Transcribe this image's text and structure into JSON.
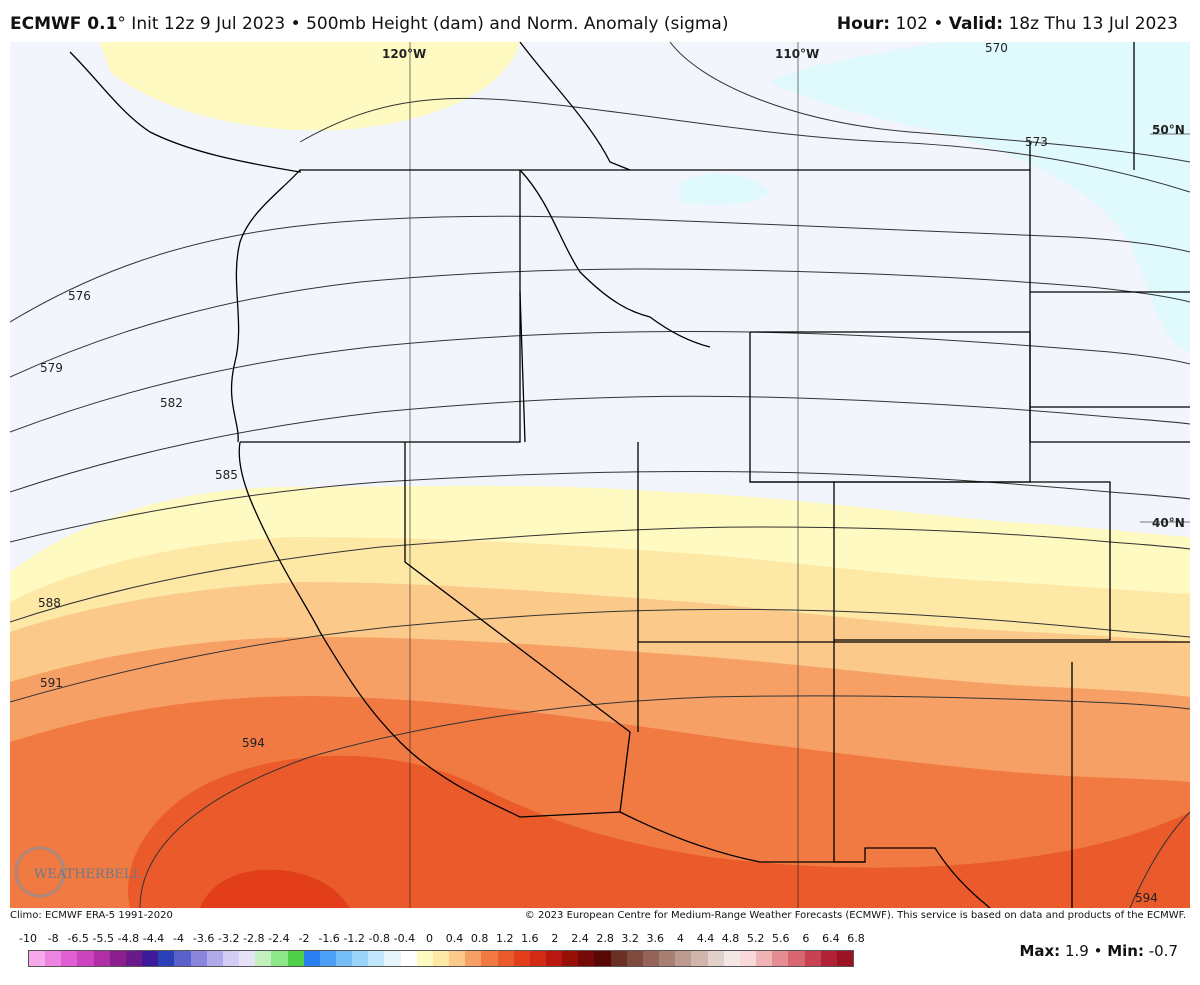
{
  "header": {
    "model": "ECMWF 0.1",
    "degree": "°",
    "init": " Init 12z 9 Jul 2023 • 500mb Height (dam) and Norm. Anomaly (sigma)",
    "hour_label": "Hour:",
    "hour_value": " 102 • ",
    "valid_label": "Valid:",
    "valid_value": " 18z Thu 13 Jul 2023"
  },
  "map": {
    "graticule": {
      "lon_120": "120°W",
      "lon_110": "110°W",
      "lat_50": "50°N",
      "lat_40": "40°N"
    },
    "contours": [
      {
        "label": "570"
      },
      {
        "label": "573"
      },
      {
        "label": "576"
      },
      {
        "label": "579"
      },
      {
        "label": "582"
      },
      {
        "label": "585"
      },
      {
        "label": "588"
      },
      {
        "label": "591"
      },
      {
        "label": "594"
      },
      {
        "label": "594"
      }
    ],
    "anomaly_colors": {
      "neg_0_4": "#f2f6fc",
      "neg_0_8": "#dff9fd",
      "pos_0_4": "#fff9c2",
      "pos_0_8": "#fde8a6",
      "pos_1_2": "#fbc98a",
      "pos_1_6": "#f7a066",
      "pos_2": "#f07a42",
      "pos_2_4": "#ea5a2a",
      "pos_2_8": "#e23e1c"
    },
    "logo": "WEATHERBELL"
  },
  "footer": {
    "climo": "Climo: ECMWF ERA-5 1991-2020",
    "copyright": "© 2023 European Centre for Medium-Range Weather Forecasts (ECMWF). This service is based on data and products of the ECMWF.",
    "scale_labels": [
      "-10",
      "-8",
      "-6.5",
      "-5.5",
      "-4.8",
      "-4.4",
      "-4",
      "-3.6",
      "-3.2",
      "-2.8",
      "-2.4",
      "-2",
      "-1.6",
      "-1.2",
      "-0.8",
      "-0.4",
      "0",
      "0.4",
      "0.8",
      "1.2",
      "1.6",
      "2",
      "2.4",
      "2.8",
      "3.2",
      "3.6",
      "4",
      "4.4",
      "4.8",
      "5.2",
      "5.6",
      "6",
      "6.4",
      "6.8"
    ],
    "scale_colors": [
      "#f6a9ec",
      "#ee84e2",
      "#e060d4",
      "#cc44bf",
      "#b02ea6",
      "#8c1f8e",
      "#6a1a8a",
      "#3d1b9a",
      "#2a3fb8",
      "#5a61cc",
      "#8a86de",
      "#b0a9ea",
      "#d2cdf3",
      "#e6e3f8",
      "#c4f0c0",
      "#8ee68a",
      "#4fd14a",
      "#2a7ff0",
      "#4ba0f5",
      "#74bdf7",
      "#9bd3f9",
      "#c2e6fb",
      "#e7f4fc",
      "#ffffff",
      "#fff9c2",
      "#fde8a6",
      "#fbc98a",
      "#f7a066",
      "#f07a42",
      "#ea5a2a",
      "#e23e1c",
      "#d22a14",
      "#b8180e",
      "#961008",
      "#760a06",
      "#5a0805",
      "#6a3026",
      "#7e4a3e",
      "#946458",
      "#a97f74",
      "#bd9a90",
      "#d0b5ad",
      "#e2d0ca",
      "#f3e8e5",
      "#f8d8d8",
      "#f0b3b6",
      "#e58d93",
      "#d96772",
      "#c84252",
      "#b22236",
      "#9c1424"
    ],
    "max_label": "Max:",
    "max_value": " 1.9 • ",
    "min_label": "Min:",
    "min_value": " -0.7"
  }
}
